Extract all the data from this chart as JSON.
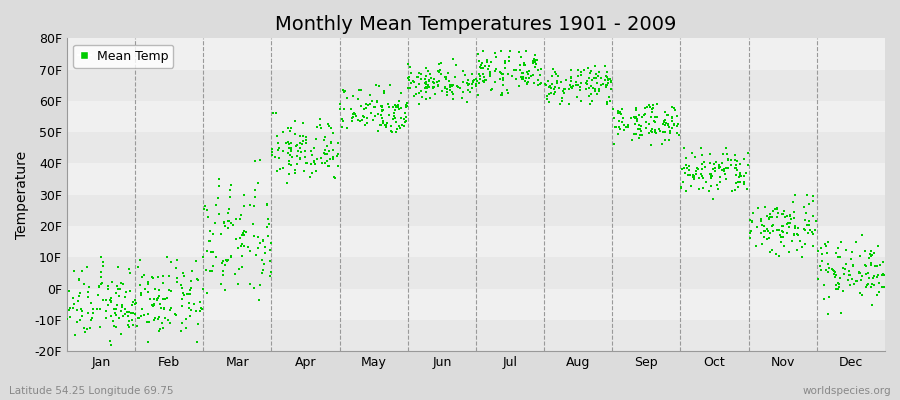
{
  "title": "Monthly Mean Temperatures 1901 - 2009",
  "ylabel": "Temperature",
  "xlabel_bottom_left": "Latitude 54.25 Longitude 69.75",
  "xlabel_bottom_right": "worldspecies.org",
  "ylim": [
    -20,
    80
  ],
  "yticks": [
    -20,
    -10,
    0,
    10,
    20,
    30,
    40,
    50,
    60,
    70,
    80
  ],
  "ytick_labels": [
    "-20F",
    "-10F",
    "0F",
    "10F",
    "20F",
    "30F",
    "40F",
    "50F",
    "60F",
    "70F",
    "80F"
  ],
  "months": [
    "Jan",
    "Feb",
    "Mar",
    "Apr",
    "May",
    "Jun",
    "Jul",
    "Aug",
    "Sep",
    "Oct",
    "Nov",
    "Dec"
  ],
  "dot_color": "#00CC00",
  "dot_size": 3,
  "title_fontsize": 14,
  "axis_fontsize": 9,
  "legend_fontsize": 9,
  "monthly_temp_ranges": {
    "Jan": [
      -18,
      10
    ],
    "Feb": [
      -17,
      10
    ],
    "Mar": [
      -5,
      44
    ],
    "Apr": [
      32,
      56
    ],
    "May": [
      50,
      65
    ],
    "Jun": [
      59,
      74
    ],
    "Jul": [
      62,
      76
    ],
    "Aug": [
      59,
      71
    ],
    "Sep": [
      46,
      59
    ],
    "Oct": [
      28,
      45
    ],
    "Nov": [
      10,
      30
    ],
    "Dec": [
      -8,
      20
    ]
  },
  "band_colors": [
    "#E8E8E8",
    "#F0F0F0"
  ],
  "dashed_line_color": "#999999"
}
